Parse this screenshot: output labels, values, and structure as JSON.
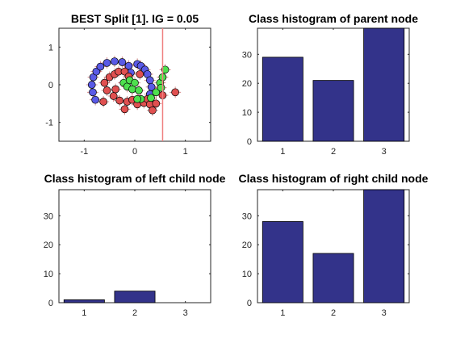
{
  "chart_data": [
    {
      "type": "scatter",
      "title": "BEST Split [1]. IG = 0.05",
      "xlim": [
        -1.5,
        1.5
      ],
      "ylim": [
        -1.5,
        1.5
      ],
      "xticks": [
        -1,
        0,
        1
      ],
      "yticks": [
        -1,
        0,
        1
      ],
      "xticklabels": [
        "-1",
        "0",
        "1"
      ],
      "yticklabels": [
        "-1",
        "0",
        "1"
      ],
      "split_line_x": 0.55,
      "split_line_color": "#f08080",
      "grid": false,
      "series": [
        {
          "color": "#5a5ae6",
          "points": [
            [
              -0.78,
              -0.4
            ],
            [
              -0.83,
              -0.2
            ],
            [
              -0.85,
              0.0
            ],
            [
              -0.82,
              0.2
            ],
            [
              -0.76,
              0.35
            ],
            [
              -0.68,
              0.48
            ],
            [
              -0.55,
              0.58
            ],
            [
              -0.4,
              0.62
            ],
            [
              -0.25,
              0.6
            ],
            [
              -0.12,
              0.5
            ],
            [
              -0.08,
              0.32
            ],
            [
              0.05,
              0.55
            ],
            [
              0.12,
              0.5
            ],
            [
              0.2,
              0.4
            ],
            [
              0.25,
              0.28
            ],
            [
              0.3,
              0.12
            ],
            [
              0.33,
              -0.06
            ],
            [
              0.3,
              -0.25
            ]
          ]
        },
        {
          "color": "#e05050",
          "points": [
            [
              -0.6,
              0.05
            ],
            [
              -0.55,
              -0.15
            ],
            [
              -0.5,
              0.2
            ],
            [
              -0.42,
              -0.3
            ],
            [
              -0.4,
              0.28
            ],
            [
              -0.32,
              0.35
            ],
            [
              -0.3,
              -0.42
            ],
            [
              -0.2,
              0.35
            ],
            [
              -0.15,
              -0.45
            ],
            [
              -0.12,
              0.22
            ],
            [
              -0.05,
              -0.4
            ],
            [
              0.05,
              -0.52
            ],
            [
              0.1,
              0.28
            ],
            [
              0.18,
              -0.48
            ],
            [
              0.25,
              -0.38
            ],
            [
              0.3,
              -0.52
            ],
            [
              0.42,
              -0.5
            ],
            [
              0.55,
              -0.28
            ],
            [
              0.8,
              -0.2
            ],
            [
              0.35,
              -0.68
            ],
            [
              -0.2,
              -0.65
            ],
            [
              -0.38,
              -0.12
            ],
            [
              -0.62,
              -0.45
            ]
          ]
        },
        {
          "color": "#4ee04e",
          "points": [
            [
              -0.22,
              0.05
            ],
            [
              -0.15,
              -0.05
            ],
            [
              -0.1,
              0.12
            ],
            [
              -0.05,
              -0.12
            ],
            [
              0.0,
              0.05
            ],
            [
              0.08,
              -0.15
            ],
            [
              0.12,
              -0.38
            ],
            [
              0.05,
              -0.38
            ],
            [
              0.32,
              -0.35
            ],
            [
              0.42,
              -0.2
            ],
            [
              0.5,
              0.05
            ],
            [
              0.55,
              0.2
            ],
            [
              0.6,
              0.4
            ],
            [
              0.52,
              -0.08
            ]
          ]
        }
      ]
    },
    {
      "type": "bar",
      "title": "Class histogram of parent node",
      "categories": [
        "1",
        "2",
        "3"
      ],
      "values": [
        29,
        21,
        39
      ],
      "ylim": [
        0,
        39
      ],
      "yticks": [
        0,
        10,
        20,
        30
      ],
      "color": "#33338a",
      "grid": false
    },
    {
      "type": "bar",
      "title": "Class histogram of left child node",
      "categories": [
        "1",
        "2",
        "3"
      ],
      "values": [
        1,
        4,
        0
      ],
      "ylim": [
        0,
        39
      ],
      "yticks": [
        0,
        10,
        20,
        30
      ],
      "color": "#33338a",
      "grid": false
    },
    {
      "type": "bar",
      "title": "Class histogram of right child node",
      "categories": [
        "1",
        "2",
        "3"
      ],
      "values": [
        28,
        17,
        39
      ],
      "ylim": [
        0,
        39
      ],
      "yticks": [
        0,
        10,
        20,
        30
      ],
      "color": "#33338a",
      "grid": false
    }
  ]
}
